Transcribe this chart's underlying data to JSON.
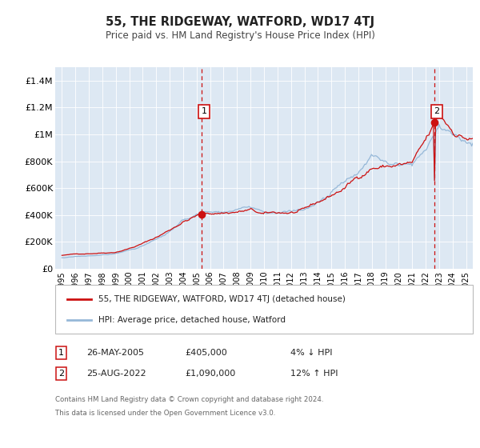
{
  "title": "55, THE RIDGEWAY, WATFORD, WD17 4TJ",
  "subtitle": "Price paid vs. HM Land Registry's House Price Index (HPI)",
  "xlim": [
    1994.5,
    2025.5
  ],
  "ylim": [
    0,
    1500000
  ],
  "yticks": [
    0,
    200000,
    400000,
    600000,
    800000,
    1000000,
    1200000,
    1400000
  ],
  "ytick_labels": [
    "£0",
    "£200K",
    "£400K",
    "£600K",
    "£800K",
    "£1M",
    "£1.2M",
    "£1.4M"
  ],
  "xticks": [
    1995,
    1996,
    1997,
    1998,
    1999,
    2000,
    2001,
    2002,
    2003,
    2004,
    2005,
    2006,
    2007,
    2008,
    2009,
    2010,
    2011,
    2012,
    2013,
    2014,
    2015,
    2016,
    2017,
    2018,
    2019,
    2020,
    2021,
    2022,
    2023,
    2024,
    2025
  ],
  "bg_color": "#dde8f3",
  "fig_bg": "#ffffff",
  "hpi_color": "#96b8d8",
  "price_color": "#cc1111",
  "sale1_x": 2005.38,
  "sale1_y": 405000,
  "sale2_x": 2022.64,
  "sale2_y": 1090000,
  "legend_line1": "55, THE RIDGEWAY, WATFORD, WD17 4TJ (detached house)",
  "legend_line2": "HPI: Average price, detached house, Watford",
  "annotation1_date": "26-MAY-2005",
  "annotation1_price": "£405,000",
  "annotation1_hpi": "4% ↓ HPI",
  "annotation2_date": "25-AUG-2022",
  "annotation2_price": "£1,090,000",
  "annotation2_hpi": "12% ↑ HPI",
  "footer1": "Contains HM Land Registry data © Crown copyright and database right 2024.",
  "footer2": "This data is licensed under the Open Government Licence v3.0."
}
